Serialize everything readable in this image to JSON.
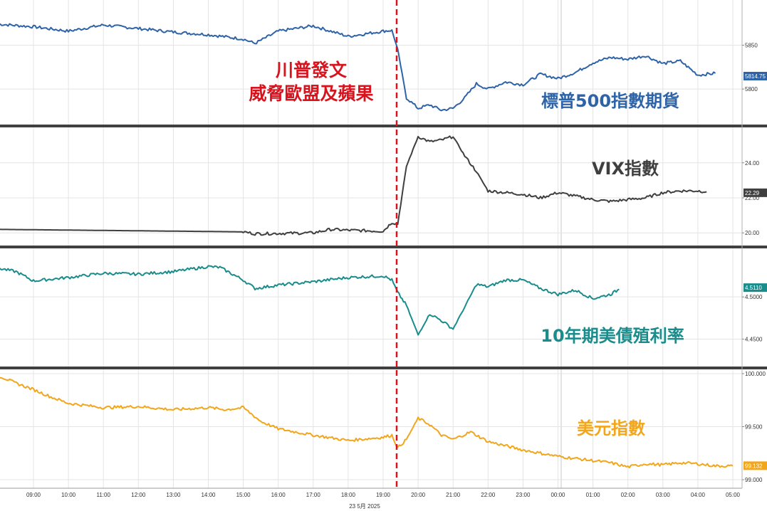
{
  "event_annotation": {
    "line1": "川普發文",
    "line2": "威脅歐盟及蘋果",
    "color": "#d7141e"
  },
  "date_label": "23 5月 2025",
  "x_ticks": [
    "09:00",
    "10:00",
    "11:00",
    "12:00",
    "13:00",
    "14:00",
    "15:00",
    "16:00",
    "17:00",
    "18:00",
    "19:00",
    "20:00",
    "21:00",
    "22:00",
    "23:00",
    "00:00",
    "01:00",
    "02:00",
    "03:00",
    "04:00",
    "05:00"
  ],
  "chart_data": [
    {
      "type": "line",
      "series_label": "標普500指數期貨",
      "color": "#2e63a8",
      "y_ticks": [
        "5850",
        "5800"
      ],
      "y_tick_values": [
        5850,
        5800
      ],
      "ylim": [
        5762,
        5895
      ],
      "last_value_label": "5814.75",
      "last_value": 5814.75,
      "x": [
        "08:00",
        "09:00",
        "10:00",
        "11:00",
        "12:00",
        "13:00",
        "14:00",
        "15:00",
        "15:20",
        "16:00",
        "17:00",
        "18:00",
        "19:00",
        "19:15",
        "19:25",
        "19:40",
        "20:00",
        "20:20",
        "20:40",
        "21:00",
        "21:20",
        "21:40",
        "22:00",
        "22:30",
        "23:00",
        "23:30",
        "00:00",
        "00:30",
        "01:00",
        "01:30",
        "02:00",
        "02:30",
        "03:00",
        "03:30",
        "04:00",
        "04:30"
      ],
      "values": [
        5874,
        5871,
        5866,
        5873,
        5869,
        5865,
        5862,
        5857,
        5852,
        5866,
        5872,
        5860,
        5866,
        5867,
        5845,
        5790,
        5778,
        5782,
        5776,
        5778,
        5790,
        5806,
        5800,
        5808,
        5805,
        5817,
        5812,
        5819,
        5830,
        5836,
        5834,
        5838,
        5829,
        5832,
        5816,
        5818
      ]
    },
    {
      "type": "line",
      "series_label": "VIX指數",
      "color": "#3f3f3f",
      "y_ticks": [
        "24.00",
        "22.00",
        "20.00"
      ],
      "y_tick_values": [
        24,
        22,
        20
      ],
      "ylim": [
        19.4,
        25.9
      ],
      "last_value_label": "22.29",
      "last_value": 22.29,
      "x": [
        "08:00",
        "09:00",
        "10:00",
        "11:00",
        "12:00",
        "13:00",
        "14:00",
        "15:00",
        "15:20",
        "16:00",
        "17:00",
        "17:30",
        "18:00",
        "19:00",
        "19:15",
        "19:25",
        "19:40",
        "20:00",
        "20:20",
        "20:40",
        "21:00",
        "21:20",
        "21:40",
        "22:00",
        "22:30",
        "23:00",
        "23:30",
        "00:00",
        "00:30",
        "01:00",
        "01:30",
        "02:00",
        "02:30",
        "03:00",
        "03:30",
        "04:00",
        "04:15"
      ],
      "values": [
        20.2,
        20.18,
        20.16,
        20.14,
        20.12,
        20.1,
        20.08,
        20.06,
        19.95,
        19.97,
        20.0,
        20.2,
        20.15,
        20.1,
        20.6,
        20.5,
        23.8,
        25.5,
        25.2,
        25.3,
        25.5,
        24.4,
        23.5,
        22.4,
        22.3,
        22.2,
        22.0,
        22.3,
        22.1,
        21.9,
        21.8,
        21.9,
        22.0,
        22.3,
        22.4,
        22.4,
        22.35
      ]
    },
    {
      "type": "line",
      "series_label": "10年期美債殖利率",
      "color": "#1b8c8c",
      "y_ticks": [
        "4.5000",
        "4.4500"
      ],
      "y_tick_values": [
        4.5,
        4.45
      ],
      "ylim": [
        4.42,
        4.555
      ],
      "last_value_label": "4.5110",
      "last_value": 4.511,
      "x": [
        "08:00",
        "08:30",
        "09:00",
        "10:00",
        "11:00",
        "12:00",
        "13:00",
        "14:00",
        "14:20",
        "15:00",
        "15:20",
        "16:00",
        "17:00",
        "18:00",
        "19:00",
        "19:15",
        "19:25",
        "19:40",
        "20:00",
        "20:20",
        "20:40",
        "21:00",
        "21:20",
        "21:40",
        "22:00",
        "22:30",
        "23:00",
        "23:30",
        "00:00",
        "00:30",
        "01:00",
        "01:30",
        "01:45"
      ],
      "values": [
        4.534,
        4.53,
        4.519,
        4.523,
        4.528,
        4.527,
        4.53,
        4.536,
        4.535,
        4.52,
        4.51,
        4.514,
        4.518,
        4.523,
        4.525,
        4.52,
        4.505,
        4.49,
        4.455,
        4.48,
        4.472,
        4.462,
        4.488,
        4.515,
        4.512,
        4.52,
        4.52,
        4.51,
        4.503,
        4.508,
        4.498,
        4.503,
        4.509
      ]
    },
    {
      "type": "line",
      "series_label": "美元指數",
      "color": "#f2a61b",
      "y_ticks": [
        "100.000",
        "99.500",
        "99.000"
      ],
      "y_tick_values": [
        100,
        99.5,
        99
      ],
      "ylim": [
        98.96,
        100.02
      ],
      "last_value_label": "99.132",
      "last_value": 99.132,
      "x": [
        "08:00",
        "08:30",
        "09:00",
        "09:30",
        "10:00",
        "11:00",
        "12:00",
        "13:00",
        "14:00",
        "14:30",
        "15:00",
        "15:30",
        "16:00",
        "17:00",
        "18:00",
        "19:00",
        "19:15",
        "19:25",
        "19:40",
        "20:00",
        "20:20",
        "20:40",
        "21:00",
        "21:30",
        "22:00",
        "22:30",
        "23:00",
        "23:30",
        "00:00",
        "00:30",
        "01:00",
        "01:30",
        "02:00",
        "02:30",
        "03:00",
        "03:30",
        "04:00",
        "04:30",
        "05:00"
      ],
      "values": [
        99.98,
        99.91,
        99.85,
        99.78,
        99.72,
        99.68,
        99.69,
        99.66,
        99.68,
        99.66,
        99.68,
        99.55,
        99.48,
        99.42,
        99.37,
        99.4,
        99.42,
        99.3,
        99.38,
        99.58,
        99.52,
        99.42,
        99.38,
        99.45,
        99.36,
        99.32,
        99.28,
        99.25,
        99.22,
        99.2,
        99.18,
        99.16,
        99.12,
        99.15,
        99.14,
        99.16,
        99.15,
        99.13,
        99.13
      ]
    }
  ]
}
